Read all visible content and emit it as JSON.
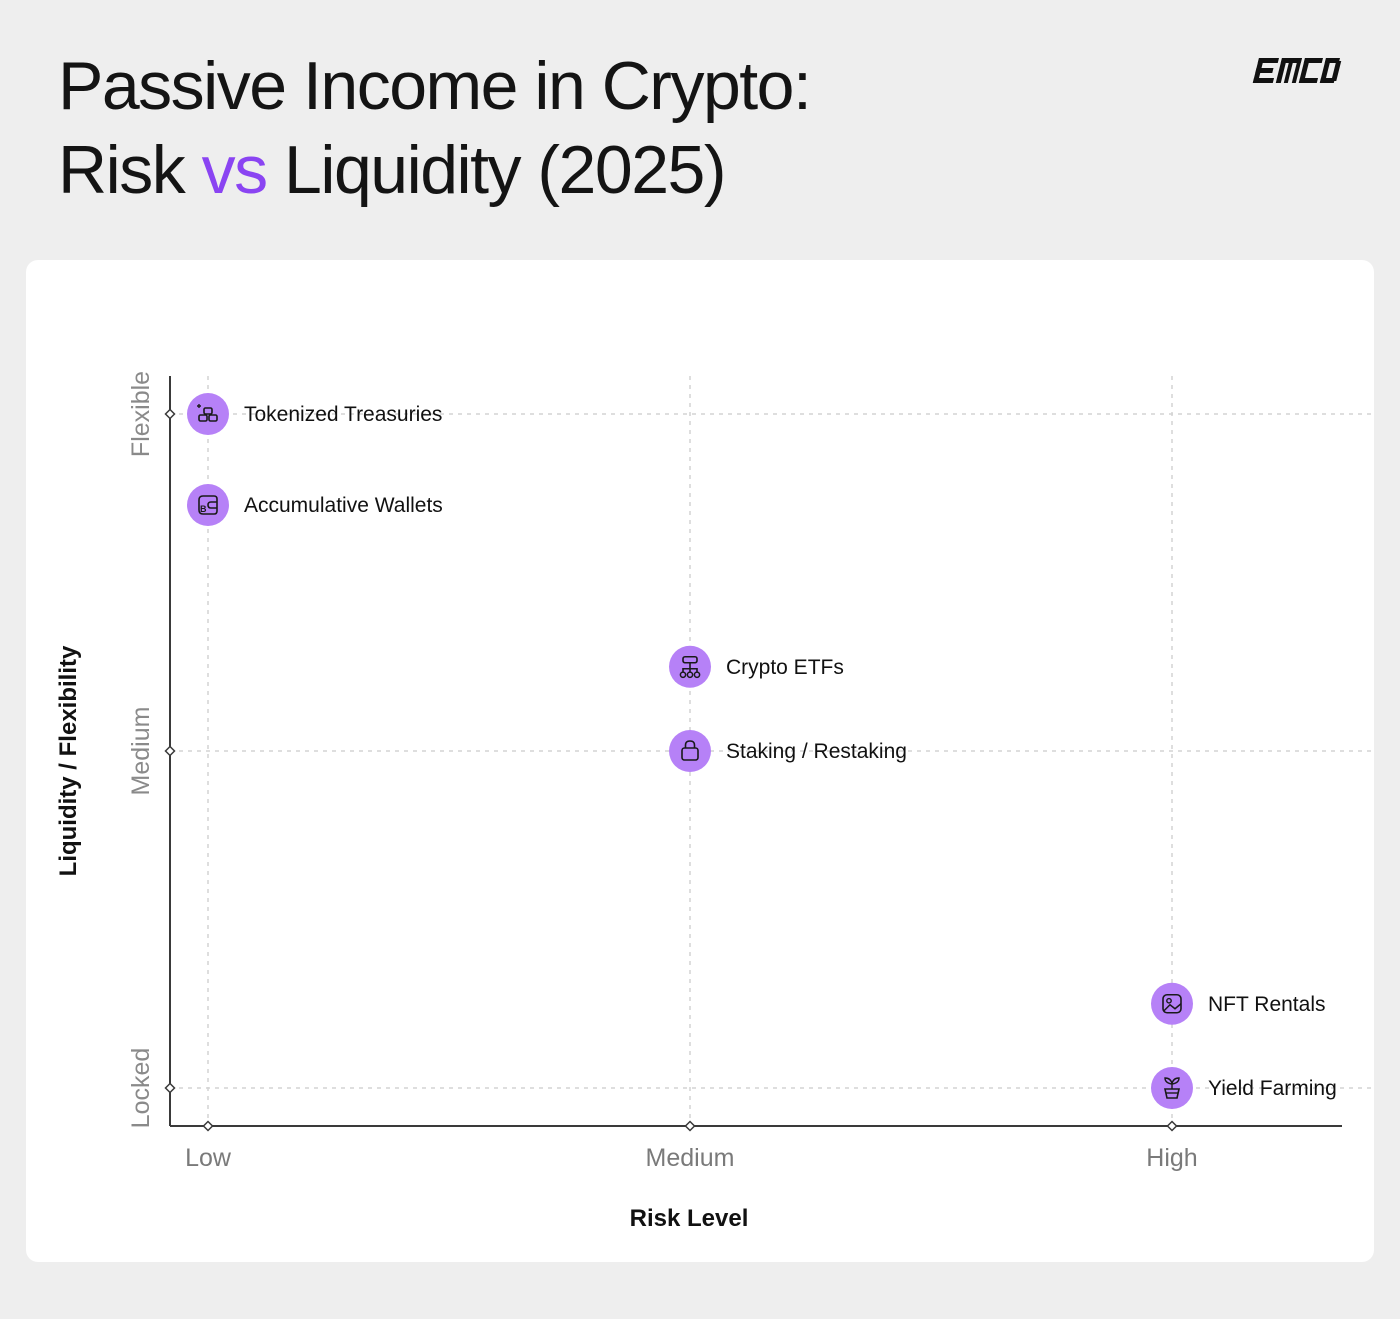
{
  "header": {
    "title_line1": "Passive Income in Crypto:",
    "title_risk": "Risk",
    "title_vs": "vs",
    "title_rest": "Liquidity (2025)",
    "accent_color": "#8a44f2",
    "logo_text": "EMCD"
  },
  "chart_data": {
    "type": "scatter",
    "title": "Passive Income in Crypto: Risk vs Liquidity (2025)",
    "xlabel": "Risk Level",
    "ylabel": "Liquidity / Flexibility",
    "x_categories": [
      "Low",
      "Medium",
      "High"
    ],
    "y_categories": [
      "Locked",
      "Medium",
      "Flexible"
    ],
    "xlim": [
      0,
      2
    ],
    "ylim": [
      0,
      2
    ],
    "grid": true,
    "marker_color": "#b681f7",
    "points": [
      {
        "label": "Tokenized Treasuries",
        "x": 0,
        "y": 2.0,
        "icon": "gold-bars-icon"
      },
      {
        "label": "Accumulative Wallets",
        "x": 0,
        "y": 1.73,
        "icon": "wallet-icon"
      },
      {
        "label": "Crypto ETFs",
        "x": 1,
        "y": 1.25,
        "icon": "fund-structure-icon"
      },
      {
        "label": "Staking / Restaking",
        "x": 1,
        "y": 1.0,
        "icon": "lock-icon"
      },
      {
        "label": "NFT Rentals",
        "x": 2,
        "y": 0.25,
        "icon": "image-icon"
      },
      {
        "label": "Yield Farming",
        "x": 2,
        "y": 0.0,
        "icon": "plant-pot-icon"
      }
    ]
  }
}
